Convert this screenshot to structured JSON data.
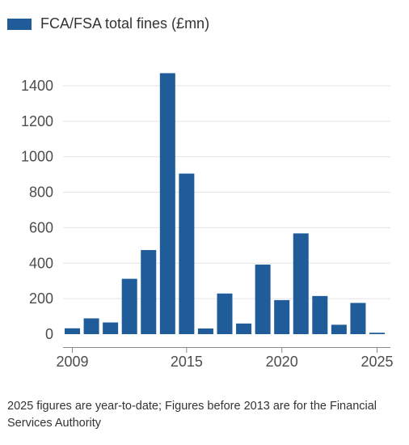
{
  "legend": {
    "label": "FCA/FSA total fines (£mn)",
    "color": "#1f5c99"
  },
  "footnote": "2025 figures are year-to-date; Figures before 2013 are for the Financial Services Authority",
  "chart_data": {
    "type": "bar",
    "title": "",
    "xlabel": "",
    "ylabel": "",
    "ylim": [
      0,
      1500
    ],
    "y_ticks": [
      0,
      200,
      400,
      600,
      800,
      1000,
      1200,
      1400
    ],
    "x_ticks": [
      2009,
      2015,
      2020,
      2025
    ],
    "grid": "horizontal",
    "legend_position": "top-left",
    "categories": [
      2009,
      2010,
      2011,
      2012,
      2013,
      2014,
      2015,
      2016,
      2017,
      2018,
      2019,
      2020,
      2021,
      2022,
      2023,
      2024,
      2025
    ],
    "series": [
      {
        "name": "FCA/FSA total fines (£mn)",
        "color": "#1f5c99",
        "values": [
          33,
          89,
          66,
          312,
          474,
          1471,
          905,
          32,
          229,
          60,
          392,
          192,
          568,
          215,
          53,
          176,
          8
        ]
      }
    ]
  }
}
